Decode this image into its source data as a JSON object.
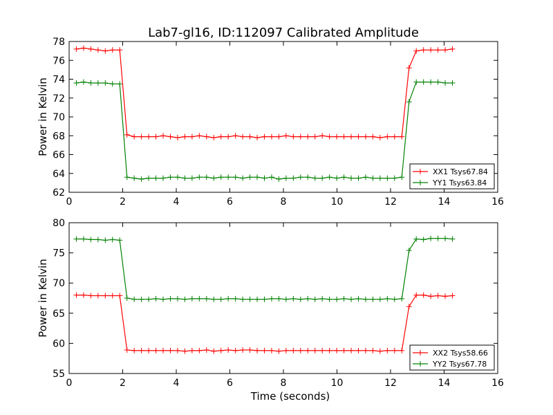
{
  "figure": {
    "title": "Lab7-gl16, ID:112097 Calibrated Amplitude"
  },
  "chart_data": [
    {
      "type": "line",
      "title": "Lab7-gl16, ID:112097 Calibrated Amplitude",
      "xlabel": "",
      "ylabel": "Power in Kelvin",
      "xlim": [
        0,
        16
      ],
      "ylim": [
        62,
        78
      ],
      "xticks": [
        "0",
        "2",
        "4",
        "6",
        "8",
        "10",
        "12",
        "14",
        "16"
      ],
      "yticks": [
        "62",
        "64",
        "66",
        "68",
        "70",
        "72",
        "74",
        "76",
        "78"
      ],
      "grid": false,
      "legend_position": "lower-right",
      "x": [
        0.27,
        0.54,
        0.81,
        1.08,
        1.35,
        1.62,
        1.89,
        2.16,
        2.43,
        2.7,
        2.97,
        3.24,
        3.51,
        3.78,
        4.05,
        4.32,
        4.59,
        4.86,
        5.13,
        5.4,
        5.67,
        5.94,
        6.21,
        6.48,
        6.75,
        7.02,
        7.29,
        7.56,
        7.83,
        8.1,
        8.37,
        8.64,
        8.91,
        9.18,
        9.45,
        9.72,
        9.99,
        10.26,
        10.53,
        10.8,
        11.07,
        11.34,
        11.61,
        11.88,
        12.15,
        12.42,
        12.69,
        12.96,
        13.23,
        13.5,
        13.77,
        14.04,
        14.31
      ],
      "series": [
        {
          "name": "XX1 Tsys67.84",
          "color": "#ff0000",
          "values": [
            77.2,
            77.3,
            77.2,
            77.1,
            77.0,
            77.1,
            77.1,
            68.1,
            67.9,
            67.9,
            67.9,
            67.9,
            68.0,
            67.9,
            67.8,
            67.9,
            67.9,
            68.0,
            67.9,
            67.8,
            67.9,
            67.9,
            68.0,
            67.9,
            67.9,
            67.8,
            67.9,
            67.9,
            67.9,
            68.0,
            67.9,
            67.9,
            67.9,
            67.9,
            68.0,
            67.9,
            67.9,
            67.9,
            67.9,
            67.9,
            67.9,
            67.9,
            67.8,
            67.9,
            67.9,
            67.9,
            75.2,
            77.0,
            77.1,
            77.1,
            77.1,
            77.1,
            77.2
          ]
        },
        {
          "name": "YY1 Tsys63.84",
          "color": "#008000",
          "values": [
            73.6,
            73.7,
            73.6,
            73.6,
            73.6,
            73.5,
            73.5,
            63.6,
            63.5,
            63.4,
            63.5,
            63.5,
            63.5,
            63.6,
            63.6,
            63.5,
            63.5,
            63.6,
            63.6,
            63.5,
            63.6,
            63.6,
            63.6,
            63.5,
            63.6,
            63.6,
            63.5,
            63.6,
            63.4,
            63.5,
            63.5,
            63.6,
            63.6,
            63.5,
            63.5,
            63.6,
            63.5,
            63.6,
            63.5,
            63.5,
            63.6,
            63.5,
            63.5,
            63.5,
            63.5,
            63.6,
            71.6,
            73.7,
            73.7,
            73.7,
            73.7,
            73.6,
            73.6
          ]
        }
      ]
    },
    {
      "type": "line",
      "title": "",
      "xlabel": "Time (seconds)",
      "ylabel": "Power in Kelvin",
      "xlim": [
        0,
        16
      ],
      "ylim": [
        55,
        80
      ],
      "xticks": [
        "0",
        "2",
        "4",
        "6",
        "8",
        "10",
        "12",
        "14",
        "16"
      ],
      "yticks": [
        "55",
        "60",
        "65",
        "70",
        "75",
        "80"
      ],
      "grid": false,
      "legend_position": "lower-right",
      "x": [
        0.27,
        0.54,
        0.81,
        1.08,
        1.35,
        1.62,
        1.89,
        2.16,
        2.43,
        2.7,
        2.97,
        3.24,
        3.51,
        3.78,
        4.05,
        4.32,
        4.59,
        4.86,
        5.13,
        5.4,
        5.67,
        5.94,
        6.21,
        6.48,
        6.75,
        7.02,
        7.29,
        7.56,
        7.83,
        8.1,
        8.37,
        8.64,
        8.91,
        9.18,
        9.45,
        9.72,
        9.99,
        10.26,
        10.53,
        10.8,
        11.07,
        11.34,
        11.61,
        11.88,
        12.15,
        12.42,
        12.69,
        12.96,
        13.23,
        13.5,
        13.77,
        14.04,
        14.31
      ],
      "series": [
        {
          "name": "XX2 Tsys58.66",
          "color": "#ff0000",
          "values": [
            68.0,
            68.0,
            67.9,
            67.9,
            67.9,
            67.9,
            67.9,
            58.9,
            58.8,
            58.8,
            58.8,
            58.8,
            58.8,
            58.8,
            58.8,
            58.7,
            58.8,
            58.8,
            58.9,
            58.7,
            58.8,
            58.9,
            58.8,
            58.9,
            58.9,
            58.8,
            58.8,
            58.8,
            58.7,
            58.8,
            58.8,
            58.8,
            58.8,
            58.8,
            58.8,
            58.8,
            58.8,
            58.8,
            58.8,
            58.8,
            58.8,
            58.8,
            58.7,
            58.8,
            58.8,
            58.8,
            66.1,
            68.0,
            68.0,
            67.8,
            67.9,
            67.8,
            67.9
          ]
        },
        {
          "name": "YY2 Tsys67.78",
          "color": "#008000",
          "values": [
            77.3,
            77.3,
            77.2,
            77.2,
            77.1,
            77.2,
            77.1,
            67.5,
            67.3,
            67.3,
            67.3,
            67.4,
            67.3,
            67.4,
            67.4,
            67.3,
            67.4,
            67.4,
            67.4,
            67.3,
            67.3,
            67.4,
            67.4,
            67.3,
            67.3,
            67.3,
            67.3,
            67.4,
            67.4,
            67.3,
            67.4,
            67.3,
            67.4,
            67.3,
            67.4,
            67.3,
            67.3,
            67.4,
            67.3,
            67.4,
            67.3,
            67.3,
            67.3,
            67.4,
            67.3,
            67.4,
            75.4,
            77.3,
            77.2,
            77.4,
            77.4,
            77.4,
            77.3
          ]
        }
      ]
    }
  ]
}
